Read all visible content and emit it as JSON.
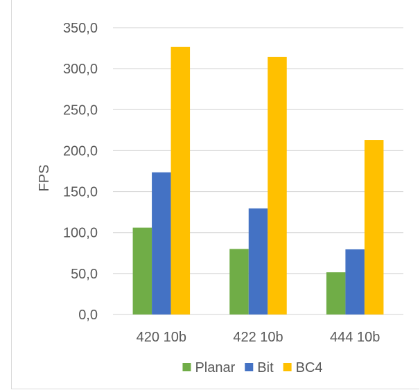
{
  "chart_data": {
    "type": "bar",
    "title": "",
    "xlabel": "",
    "ylabel": "FPS",
    "categories": [
      "420 10b",
      "422 10b",
      "444 10b"
    ],
    "series": [
      {
        "name": "Planar",
        "values": [
          106.0,
          80.0,
          51.5
        ],
        "color": "#70ad47"
      },
      {
        "name": "Bit",
        "values": [
          173.5,
          129.5,
          79.5
        ],
        "color": "#4472c4"
      },
      {
        "name": "BC4",
        "values": [
          326.5,
          314.5,
          213.0
        ],
        "color": "#ffc000"
      }
    ],
    "ylim": [
      0,
      350
    ],
    "yticks": [
      "0,0",
      "50,0",
      "100,0",
      "150,0",
      "200,0",
      "250,0",
      "300,0",
      "350,0"
    ],
    "gridlines": true,
    "legend_position": "bottom"
  }
}
